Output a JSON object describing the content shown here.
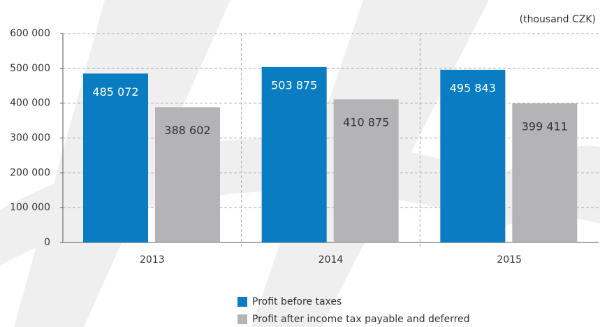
{
  "chart_data": {
    "type": "bar",
    "unit_label": "(thousand CZK)",
    "categories": [
      "2013",
      "2014",
      "2015"
    ],
    "series": [
      {
        "name": "Profit before taxes",
        "color": "#0a7dc2",
        "values": [
          485072,
          503875,
          495843
        ],
        "value_labels": [
          "485 072",
          "503 875",
          "495 843"
        ]
      },
      {
        "name": "Profit after income tax payable and deferred",
        "color": "#b4b4b6",
        "values": [
          388602,
          410875,
          399411
        ],
        "value_labels": [
          "388 602",
          "410 875",
          "399 411"
        ]
      }
    ],
    "ylim": [
      0,
      600000
    ],
    "yticks": [
      0,
      {
        "value": 100000,
        "label": "100 000"
      },
      {
        "value": 200000,
        "label": "200 000"
      },
      {
        "value": 300000,
        "label": "300 000"
      },
      {
        "value": 400000,
        "label": "400 000"
      },
      {
        "value": 500000,
        "label": "500 000"
      },
      {
        "value": 600000,
        "label": "600 000"
      }
    ],
    "grid": true,
    "legend": "bottom"
  }
}
